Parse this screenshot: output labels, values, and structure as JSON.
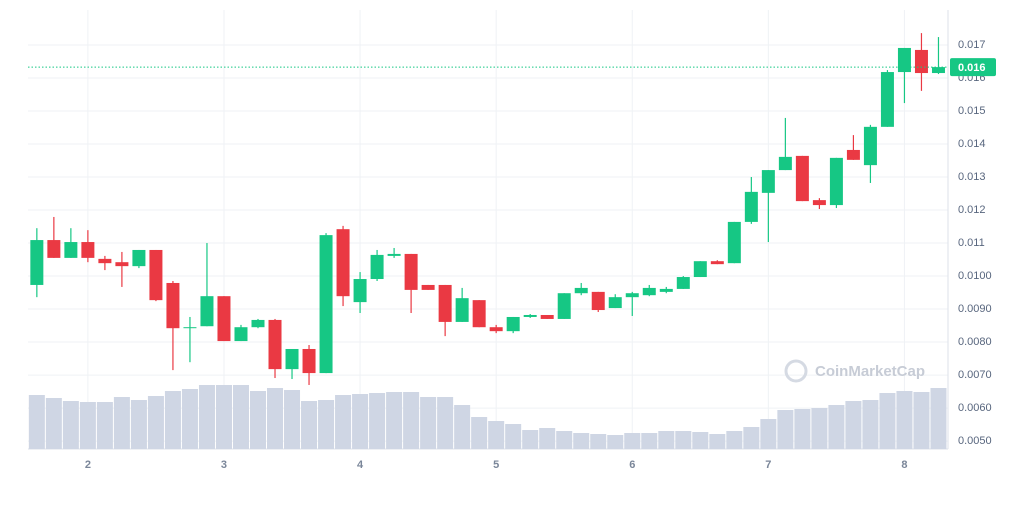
{
  "chart_data": {
    "type": "candlestick",
    "watermark": "CoinMarketCap",
    "x": [
      1.625,
      1.75,
      1.875,
      2.0,
      2.125,
      2.25,
      2.375,
      2.5,
      2.625,
      2.75,
      2.875,
      3.0,
      3.125,
      3.25,
      3.375,
      3.5,
      3.625,
      3.75,
      3.875,
      4.0,
      4.125,
      4.25,
      4.375,
      4.5,
      4.625,
      4.75,
      4.875,
      5.0,
      5.125,
      5.25,
      5.375,
      5.5,
      5.625,
      5.75,
      5.875,
      6.0,
      6.125,
      6.25,
      6.375,
      6.5,
      6.625,
      6.75,
      6.875,
      7.0,
      7.125,
      7.25,
      7.375,
      7.5,
      7.625,
      7.75,
      7.875,
      8.0,
      8.125,
      8.25
    ],
    "open": [
      0.00973,
      0.01109,
      0.01055,
      0.01103,
      0.01052,
      0.01042,
      0.0103,
      0.01079,
      0.00979,
      0.00842,
      0.00848,
      0.00939,
      0.00803,
      0.00845,
      0.00867,
      0.00718,
      0.00779,
      0.00706,
      0.01142,
      0.00921,
      0.00991,
      0.01061,
      0.01067,
      0.00973,
      0.00973,
      0.00861,
      0.00927,
      0.00845,
      0.00833,
      0.00876,
      0.00882,
      0.0087,
      0.00948,
      0.00952,
      0.00903,
      0.00936,
      0.00942,
      0.00952,
      0.00961,
      0.00997,
      0.01045,
      0.01039,
      0.01164,
      0.01252,
      0.01321,
      0.01364,
      0.0123,
      0.01215,
      0.01382,
      0.01336,
      0.01452,
      0.01618,
      0.01685,
      0.01615
    ],
    "close": [
      0.01109,
      0.01055,
      0.01103,
      0.01055,
      0.01039,
      0.0103,
      0.01079,
      0.00927,
      0.00842,
      0.00845,
      0.00939,
      0.00803,
      0.00845,
      0.00867,
      0.00718,
      0.00779,
      0.00706,
      0.01124,
      0.00939,
      0.00991,
      0.01064,
      0.01067,
      0.00958,
      0.00958,
      0.00861,
      0.00933,
      0.00845,
      0.00833,
      0.00876,
      0.00882,
      0.0087,
      0.00948,
      0.00964,
      0.00897,
      0.00936,
      0.00948,
      0.00964,
      0.00961,
      0.00997,
      0.01045,
      0.01036,
      0.01164,
      0.01255,
      0.01321,
      0.01361,
      0.01227,
      0.01215,
      0.01358,
      0.01352,
      0.01452,
      0.01618,
      0.01691,
      0.01615,
      0.01633
    ],
    "high": [
      0.01145,
      0.01179,
      0.01145,
      0.01139,
      0.01061,
      0.01073,
      0.01079,
      0.01079,
      0.00985,
      0.00876,
      0.011,
      0.00939,
      0.00852,
      0.0087,
      0.0087,
      0.00779,
      0.00791,
      0.0113,
      0.01152,
      0.01012,
      0.01079,
      0.01085,
      0.01067,
      0.00973,
      0.00973,
      0.00964,
      0.00927,
      0.00852,
      0.00876,
      0.00885,
      0.00882,
      0.00948,
      0.00979,
      0.00952,
      0.00945,
      0.00952,
      0.00973,
      0.00967,
      0.01,
      0.01045,
      0.01048,
      0.01164,
      0.013,
      0.01321,
      0.01479,
      0.01364,
      0.01236,
      0.01358,
      0.01427,
      0.01458,
      0.01624,
      0.01691,
      0.01736,
      0.01724
    ],
    "low": [
      0.00936,
      0.01055,
      0.01055,
      0.01042,
      0.01018,
      0.00967,
      0.01024,
      0.00924,
      0.00715,
      0.00739,
      0.00848,
      0.00803,
      0.00803,
      0.00842,
      0.00691,
      0.00688,
      0.0067,
      0.00706,
      0.00909,
      0.00888,
      0.00985,
      0.01055,
      0.00888,
      0.00958,
      0.00818,
      0.00861,
      0.00845,
      0.00827,
      0.00827,
      0.00873,
      0.0087,
      0.0087,
      0.00942,
      0.00891,
      0.00903,
      0.00879,
      0.00939,
      0.00948,
      0.00961,
      0.00997,
      0.01036,
      0.01039,
      0.01158,
      0.01103,
      0.01321,
      0.01227,
      0.01203,
      0.01206,
      0.01352,
      0.01282,
      0.01452,
      0.01524,
      0.01561,
      0.01612
    ],
    "volume": [
      54,
      51,
      48,
      47,
      47,
      52,
      49,
      53,
      58,
      60,
      64,
      64,
      64,
      58,
      61,
      59,
      48,
      49,
      54,
      55,
      56,
      57,
      57,
      52,
      52,
      44,
      32,
      28,
      25,
      19,
      21,
      18,
      16,
      15,
      14,
      16,
      16,
      18,
      18,
      17,
      15,
      18,
      22,
      30,
      39,
      40,
      41,
      44,
      48,
      49,
      56,
      58,
      57,
      61
    ],
    "volume_lim": [
      0,
      100
    ],
    "up_color": "#16c784",
    "down_color": "#ea3943",
    "volume_color": "#cfd6e4",
    "last_price": {
      "value": 0.01633,
      "label": "0.016"
    },
    "xlim": [
      1.56,
      8.32
    ],
    "xticks": [
      2,
      3,
      4,
      5,
      6,
      7,
      8
    ],
    "ylim": [
      0.00476,
      0.01806
    ],
    "yticks": [
      {
        "value": 0.005,
        "label": "0.0050"
      },
      {
        "value": 0.006,
        "label": "0.0060"
      },
      {
        "value": 0.007,
        "label": "0.0070"
      },
      {
        "value": 0.008,
        "label": "0.0080"
      },
      {
        "value": 0.009,
        "label": "0.0090"
      },
      {
        "value": 0.01,
        "label": "0.0100"
      },
      0.011,
      0.012,
      0.013,
      0.014,
      0.015,
      0.016,
      0.017
    ],
    "grid": true
  }
}
